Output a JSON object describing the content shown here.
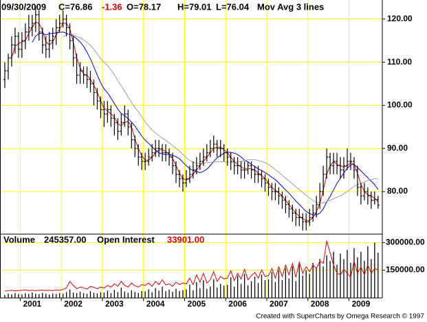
{
  "chart_data": {
    "type": "ohlc",
    "header": {
      "date": "09/30/2009",
      "close": "C=76.86",
      "change": "-1.36",
      "open": "O=78.17",
      "high": "H=79.01",
      "low": "L=76.04",
      "study": "Mov Avg 3 lines"
    },
    "categories": [
      null,
      null,
      null,
      null,
      null,
      null,
      null,
      null,
      "2001",
      null,
      null,
      null,
      null,
      null,
      null,
      null,
      null,
      null,
      null,
      null,
      "2002",
      null,
      null,
      null,
      null,
      null,
      null,
      null,
      null,
      null,
      null,
      null,
      "2003",
      null,
      null,
      null,
      null,
      null,
      null,
      null,
      null,
      null,
      null,
      null,
      "2004",
      null,
      null,
      null,
      null,
      null,
      null,
      null,
      null,
      null,
      null,
      null,
      "2005",
      null,
      null,
      null,
      null,
      null,
      null,
      null,
      null,
      null,
      null,
      null,
      "2006",
      null,
      null,
      null,
      null,
      null,
      null,
      null,
      null,
      null,
      null,
      null,
      "2007",
      null,
      null,
      null,
      null,
      null,
      null,
      null,
      null,
      null,
      null,
      null,
      "2008",
      null,
      null,
      null,
      null,
      null,
      null,
      null,
      null,
      null,
      null,
      null,
      "2009",
      null,
      null,
      null,
      null,
      null
    ],
    "open": [
      106,
      108,
      111,
      114,
      116,
      113,
      115,
      117,
      118,
      119,
      121,
      117,
      114,
      113,
      115,
      116,
      118,
      119,
      120,
      118,
      115,
      111,
      107,
      108,
      107,
      106,
      105,
      103,
      101,
      99,
      98,
      99,
      97,
      96,
      94,
      96,
      98,
      95,
      92,
      90,
      88,
      87,
      87,
      88,
      89,
      90,
      90,
      89,
      89,
      88,
      86,
      84,
      83,
      82,
      83,
      84,
      85,
      86,
      87,
      88,
      89,
      90,
      91,
      90,
      90,
      89,
      88,
      87,
      86,
      86,
      85,
      85,
      86,
      85,
      84,
      84,
      83,
      82,
      81,
      80,
      80,
      79,
      78,
      77,
      76,
      75,
      74,
      74,
      73,
      73,
      74,
      75,
      77,
      80,
      84,
      88,
      86,
      87,
      86,
      85,
      86,
      87,
      87,
      85,
      81,
      79,
      80,
      79,
      78,
      78.17
    ],
    "high": [
      110,
      112,
      116,
      118,
      117,
      117,
      119,
      121,
      121,
      123,
      122,
      118,
      116,
      117,
      118,
      120,
      121,
      122,
      121,
      119,
      116,
      112,
      110,
      109,
      109,
      108,
      106,
      104,
      102,
      101,
      101,
      100,
      98,
      97,
      98,
      100,
      99,
      96,
      93,
      91,
      89,
      89,
      90,
      91,
      92,
      92,
      91,
      91,
      90,
      89,
      87,
      85,
      84,
      85,
      86,
      87,
      88,
      89,
      90,
      91,
      92,
      93,
      92,
      92,
      91,
      90,
      89,
      88,
      88,
      87,
      87,
      87,
      87,
      86,
      86,
      85,
      84,
      83,
      82,
      82,
      81,
      80,
      79,
      78,
      77,
      76,
      76,
      75,
      75,
      76,
      77,
      79,
      82,
      86,
      90,
      89,
      89,
      89,
      88,
      88,
      90,
      89,
      88,
      86,
      82,
      82,
      81,
      80,
      80,
      79.01
    ],
    "low": [
      104,
      106,
      109,
      112,
      111,
      111,
      113,
      115,
      116,
      117,
      115,
      112,
      111,
      111,
      113,
      114,
      117,
      118,
      116,
      113,
      109,
      105,
      105,
      105,
      104,
      103,
      100,
      99,
      97,
      95,
      96,
      95,
      93,
      92,
      93,
      95,
      93,
      90,
      88,
      86,
      85,
      85,
      86,
      87,
      88,
      88,
      87,
      87,
      86,
      84,
      82,
      81,
      80,
      81,
      82,
      83,
      84,
      85,
      86,
      87,
      88,
      89,
      88,
      88,
      87,
      86,
      85,
      84,
      84,
      83,
      83,
      84,
      83,
      82,
      82,
      81,
      80,
      79,
      78,
      78,
      77,
      76,
      75,
      74,
      73,
      72,
      72,
      71,
      71,
      72,
      73,
      74,
      76,
      79,
      83,
      84,
      84,
      84,
      83,
      83,
      85,
      85,
      83,
      79,
      77,
      78,
      77,
      76,
      77,
      76.04
    ],
    "close": [
      108,
      111,
      114,
      116,
      113,
      115,
      117,
      118,
      119,
      121,
      117,
      114,
      113,
      115,
      116,
      118,
      119,
      120,
      118,
      115,
      111,
      107,
      108,
      107,
      106,
      105,
      103,
      101,
      99,
      98,
      99,
      97,
      96,
      94,
      96,
      98,
      95,
      92,
      90,
      88,
      87,
      87,
      88,
      89,
      90,
      90,
      89,
      89,
      88,
      86,
      84,
      83,
      82,
      83,
      84,
      85,
      86,
      87,
      88,
      89,
      90,
      91,
      90,
      90,
      89,
      88,
      87,
      86,
      86,
      85,
      85,
      86,
      85,
      84,
      84,
      83,
      82,
      81,
      80,
      80,
      79,
      78,
      77,
      76,
      75,
      74,
      74,
      73,
      73,
      74,
      75,
      77,
      80,
      84,
      88,
      86,
      87,
      86,
      85,
      86,
      87,
      87,
      85,
      81,
      79,
      80,
      79,
      78,
      78.22,
      76.86
    ],
    "bar_color": "#000000",
    "moving_averages": [
      {
        "color": "#e00000",
        "values": [
          null,
          null,
          111,
          113.7,
          114.3,
          114.7,
          115,
          116.7,
          118,
          119.3,
          119,
          117.3,
          114.7,
          114,
          114.7,
          116.3,
          117.7,
          119,
          119,
          117.7,
          114.7,
          111,
          108.7,
          107.3,
          107,
          106,
          104.7,
          103,
          101,
          99.3,
          98.7,
          98,
          97.3,
          95.7,
          95.3,
          96,
          96.3,
          95,
          92.3,
          90,
          88.3,
          87.3,
          87.3,
          88,
          89,
          89.7,
          89.7,
          89.3,
          88.7,
          87.7,
          86,
          84.3,
          83,
          82.7,
          83,
          84,
          85,
          86,
          87,
          88,
          89,
          90,
          90.3,
          90.3,
          89.7,
          89,
          88,
          87,
          86.3,
          85.7,
          85.3,
          85.3,
          85.3,
          85,
          84.3,
          83.7,
          83,
          82,
          81,
          80.3,
          79.7,
          79,
          78,
          77,
          76,
          75,
          74.3,
          73.7,
          73.3,
          73.3,
          74,
          75.3,
          77.3,
          80.3,
          84,
          86,
          87,
          86.3,
          86,
          85.7,
          86,
          86.7,
          86.3,
          84.3,
          81.7,
          80,
          79.3,
          79,
          78.4,
          77.7
        ]
      },
      {
        "color": "#0000e0",
        "values": [
          null,
          null,
          null,
          null,
          null,
          null,
          null,
          null,
          114.6,
          116,
          116.7,
          116.7,
          116.3,
          116.6,
          116.7,
          116.8,
          116.9,
          117,
          116.7,
          116.4,
          116.1,
          115.4,
          114.7,
          113.7,
          112.3,
          110.8,
          108.9,
          107,
          105.2,
          103.8,
          102.9,
          101.7,
          100.4,
          99.1,
          98.1,
          97.6,
          96.9,
          96.1,
          95.2,
          94,
          92.9,
          91.9,
          91.2,
          90.4,
          89.6,
          89,
          88.7,
          88.6,
          88.6,
          88.4,
          88.1,
          87.6,
          86.8,
          86,
          85.3,
          84.9,
          84.6,
          84.4,
          84.7,
          85.2,
          86,
          87,
          87.8,
          88.4,
          88.9,
          89.1,
          89.1,
          88.9,
          88.6,
          88,
          87.3,
          86.9,
          86.3,
          85.8,
          85.3,
          84.9,
          84.4,
          83.9,
          83.3,
          82.8,
          82,
          81.2,
          80.4,
          79.6,
          78.7,
          77.8,
          77,
          76.2,
          75.4,
          74.9,
          74.6,
          74.6,
          75,
          76,
          77.6,
          78.9,
          80.4,
          81.9,
          83.1,
          84.3,
          85.4,
          86.2,
          86.3,
          85.6,
          84.8,
          84,
          83.2,
          82.4,
          81.6,
          80.5
        ]
      },
      {
        "color": "#a0a0a0",
        "values": [
          null,
          null,
          null,
          null,
          null,
          null,
          null,
          null,
          null,
          null,
          null,
          null,
          null,
          null,
          null,
          null,
          null,
          115.8,
          116.4,
          116.6,
          116.4,
          115.9,
          115.7,
          115.2,
          114.6,
          113.9,
          113,
          111.9,
          110.8,
          110,
          109.2,
          108.2,
          107.1,
          105.7,
          104.5,
          103.3,
          102,
          100.7,
          99.5,
          98.5,
          97.3,
          96.2,
          95.2,
          94.3,
          93.6,
          93,
          92.4,
          91.9,
          91.3,
          90.7,
          90,
          89.4,
          88.6,
          87.8,
          87.2,
          86.8,
          86.6,
          86.5,
          86.6,
          86.7,
          86.8,
          86.9,
          86.9,
          86.9,
          86.9,
          86.9,
          86.8,
          86.8,
          86.9,
          87,
          87.2,
          87.4,
          87.4,
          87.4,
          87.2,
          87,
          86.7,
          86.3,
          85.7,
          85.1,
          84.5,
          83.8,
          83.1,
          82.5,
          81.8,
          81.1,
          80.5,
          79.8,
          79.1,
          78.5,
          77.9,
          77.5,
          77.3,
          77.4,
          77.7,
          78,
          78.3,
          78.7,
          79,
          79.5,
          80,
          80.6,
          81.2,
          81.6,
          81.9,
          82.2,
          82.6,
          82.8,
          83,
          83
        ]
      }
    ],
    "ylim": [
      70.3,
      124.1
    ],
    "yticks": [
      {
        "value": 80,
        "label": "80.00"
      },
      {
        "value": 90,
        "label": "90.00"
      },
      {
        "value": 100,
        "label": "100.00"
      },
      {
        "value": 110,
        "label": "110.00"
      },
      {
        "value": 120,
        "label": "120.00"
      }
    ],
    "grid": true,
    "grid_color": "#ffff00",
    "volume": {
      "header": {
        "volume_label": "Volume",
        "volume_value": "245357.00",
        "oi_label": "Open Interest",
        "oi_value": "33901.00"
      },
      "color": "#000000",
      "values": [
        15000,
        22000,
        18000,
        25000,
        20000,
        18000,
        24000,
        20000,
        28000,
        22000,
        19000,
        26000,
        21000,
        17000,
        23000,
        20000,
        25000,
        22000,
        30000,
        45000,
        28000,
        24000,
        32000,
        26000,
        21000,
        35000,
        27000,
        23000,
        30000,
        28000,
        38000,
        25000,
        42000,
        30000,
        55000,
        33000,
        27000,
        40000,
        31000,
        26000,
        36000,
        34000,
        45000,
        30000,
        52000,
        38000,
        60000,
        35000,
        44000,
        32000,
        48000,
        36000,
        41000,
        45000,
        70000,
        40000,
        85000,
        52000,
        95000,
        48000,
        60000,
        100000,
        55000,
        75000,
        65000,
        70000,
        110000,
        60000,
        120000,
        75000,
        130000,
        68000,
        90000,
        115000,
        80000,
        125000,
        95000,
        100000,
        140000,
        85000,
        150000,
        95000,
        160000,
        105000,
        170000,
        90000,
        180000,
        120000,
        150000,
        130000,
        190000,
        160000,
        210000,
        170000,
        230000,
        200000,
        250000,
        180000,
        240000,
        210000,
        260000,
        190000,
        270000,
        220000,
        250000,
        200000,
        280000,
        210000,
        300000,
        245357
      ],
      "ylim": [
        0,
        350000
      ],
      "yticks": [
        {
          "value": 150000,
          "label": "150000.00"
        },
        {
          "value": 300000,
          "label": "300000.00"
        }
      ],
      "y2lim": [
        0,
        79000
      ],
      "open_interest": {
        "color": "#e00000",
        "axis": "y2",
        "values": [
          8000,
          8500,
          9000,
          8200,
          8800,
          9000,
          9500,
          8700,
          9200,
          8500,
          9000,
          9300,
          8800,
          9100,
          8600,
          9400,
          9000,
          10000,
          12000,
          20000,
          15000,
          11000,
          13000,
          12000,
          10500,
          14000,
          12500,
          11000,
          13000,
          12000,
          15000,
          13000,
          17000,
          14000,
          20000,
          15000,
          13000,
          18000,
          14500,
          13000,
          16000,
          15000,
          18000,
          14000,
          20000,
          16000,
          22000,
          15500,
          17000,
          14000,
          19000,
          16000,
          18000,
          17000,
          24000,
          16000,
          28000,
          19000,
          30000,
          18000,
          22000,
          32000,
          20000,
          26000,
          23000,
          24000,
          33000,
          21000,
          30000,
          23000,
          35000,
          22000,
          27000,
          31000,
          24000,
          34000,
          26000,
          27000,
          36000,
          24000,
          38000,
          26000,
          40000,
          28000,
          42000,
          25000,
          44000,
          30000,
          38000,
          32000,
          40000,
          36000,
          45000,
          42000,
          70000,
          55000,
          40000,
          30000,
          28000,
          35000,
          30000,
          25000,
          45000,
          30000,
          38000,
          28000,
          40000,
          30000,
          36000,
          33901
        ]
      }
    },
    "footer": "Created with SuperCharts by Omega Research © 1997"
  }
}
